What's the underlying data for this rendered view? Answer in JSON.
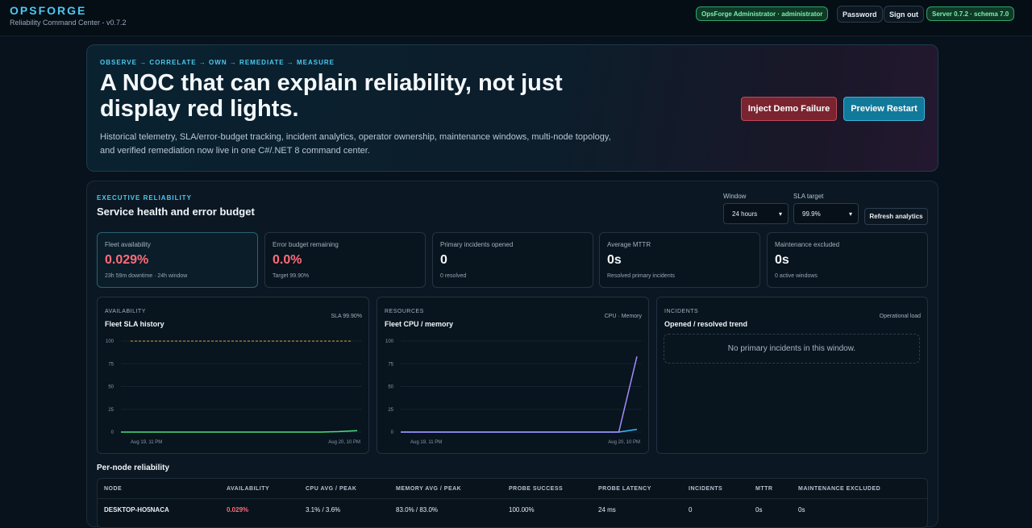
{
  "header": {
    "brand": "OPSFORGE",
    "subtitle": "Reliability Command Center - v0.7.2",
    "user_badge": "OpsForge Administrator · administrator",
    "password_button": "Password",
    "signout_button": "Sign out",
    "server_badge": "Server 0.7.2 · schema 7.0"
  },
  "hero": {
    "eyebrow": "OBSERVE → CORRELATE → OWN → REMEDIATE → MEASURE",
    "title": "A NOC that can explain reliability, not just display red lights.",
    "description": "Historical telemetry, SLA/error-budget tracking, incident analytics, operator ownership, maintenance windows, multi-node topology, and verified remediation now live in one C#/.NET 8 command center.",
    "inject_button": "Inject Demo Failure",
    "restart_button": "Preview Restart"
  },
  "executive": {
    "eyebrow": "EXECUTIVE RELIABILITY",
    "title": "Service health and error budget",
    "window_label": "Window",
    "window_value": "24 hours",
    "sla_label": "SLA target",
    "sla_value": "99.9%",
    "refresh_button": "Refresh analytics"
  },
  "kpis": [
    {
      "label": "Fleet availability",
      "value": "0.029%",
      "sub": "23h 59m downtime · 24h window"
    },
    {
      "label": "Error budget remaining",
      "value": "0.0%",
      "sub": "Target 99.90%"
    },
    {
      "label": "Primary incidents opened",
      "value": "0",
      "sub": "0 resolved"
    },
    {
      "label": "Average MTTR",
      "value": "0s",
      "sub": "Resolved primary incidents"
    },
    {
      "label": "Maintenance excluded",
      "value": "0s",
      "sub": "0 active windows"
    }
  ],
  "panels": {
    "availability": {
      "eyebrow": "AVAILABILITY",
      "title": "Fleet SLA history",
      "meta": "SLA 99.90%"
    },
    "resources": {
      "eyebrow": "RESOURCES",
      "title": "Fleet CPU / memory",
      "meta": "CPU · Memory"
    },
    "incidents": {
      "eyebrow": "INCIDENTS",
      "title": "Opened / resolved trend",
      "meta": "Operational load",
      "empty": "No primary incidents in this window."
    }
  },
  "chart_data": [
    {
      "type": "line",
      "x_start_label": "Aug 19, 11 PM",
      "x_end_label": "Aug 20, 10 PM",
      "yticks": [
        100,
        75,
        50,
        25,
        0
      ],
      "ylim": [
        0,
        100
      ],
      "series": [
        {
          "values": [
            0,
            0,
            0,
            0,
            0,
            0,
            0,
            0,
            0,
            0,
            0,
            0,
            0.5,
            1.5
          ],
          "color": "#4ade80"
        },
        {
          "values": [
            99.9,
            99.9
          ],
          "color": "#d9a23a",
          "dashed": true
        }
      ]
    },
    {
      "type": "line",
      "x_start_label": "Aug 19, 11 PM",
      "x_end_label": "Aug 20, 10 PM",
      "yticks": [
        100,
        75,
        50,
        25,
        0
      ],
      "ylim": [
        0,
        100
      ],
      "series": [
        {
          "name": "CPU",
          "values": [
            0,
            0,
            0,
            0,
            0,
            0,
            0,
            0,
            0,
            0,
            0,
            0,
            0,
            3
          ],
          "color": "#38bdf8"
        },
        {
          "name": "Memory",
          "values": [
            0,
            0,
            0,
            0,
            0,
            0,
            0,
            0,
            0,
            0,
            0,
            0,
            0,
            83
          ],
          "color": "#a78bfa"
        }
      ]
    }
  ],
  "pernode": {
    "title": "Per-node reliability",
    "columns": [
      "NODE",
      "AVAILABILITY",
      "CPU AVG / PEAK",
      "MEMORY AVG / PEAK",
      "PROBE SUCCESS",
      "PROBE LATENCY",
      "INCIDENTS",
      "MTTR",
      "MAINTENANCE EXCLUDED"
    ],
    "rows": [
      [
        "DESKTOP-HO5NACA",
        "0.029%",
        "3.1% / 3.6%",
        "83.0% / 83.0%",
        "100.00%",
        "24 ms",
        "0",
        "0s",
        "0s"
      ]
    ]
  }
}
